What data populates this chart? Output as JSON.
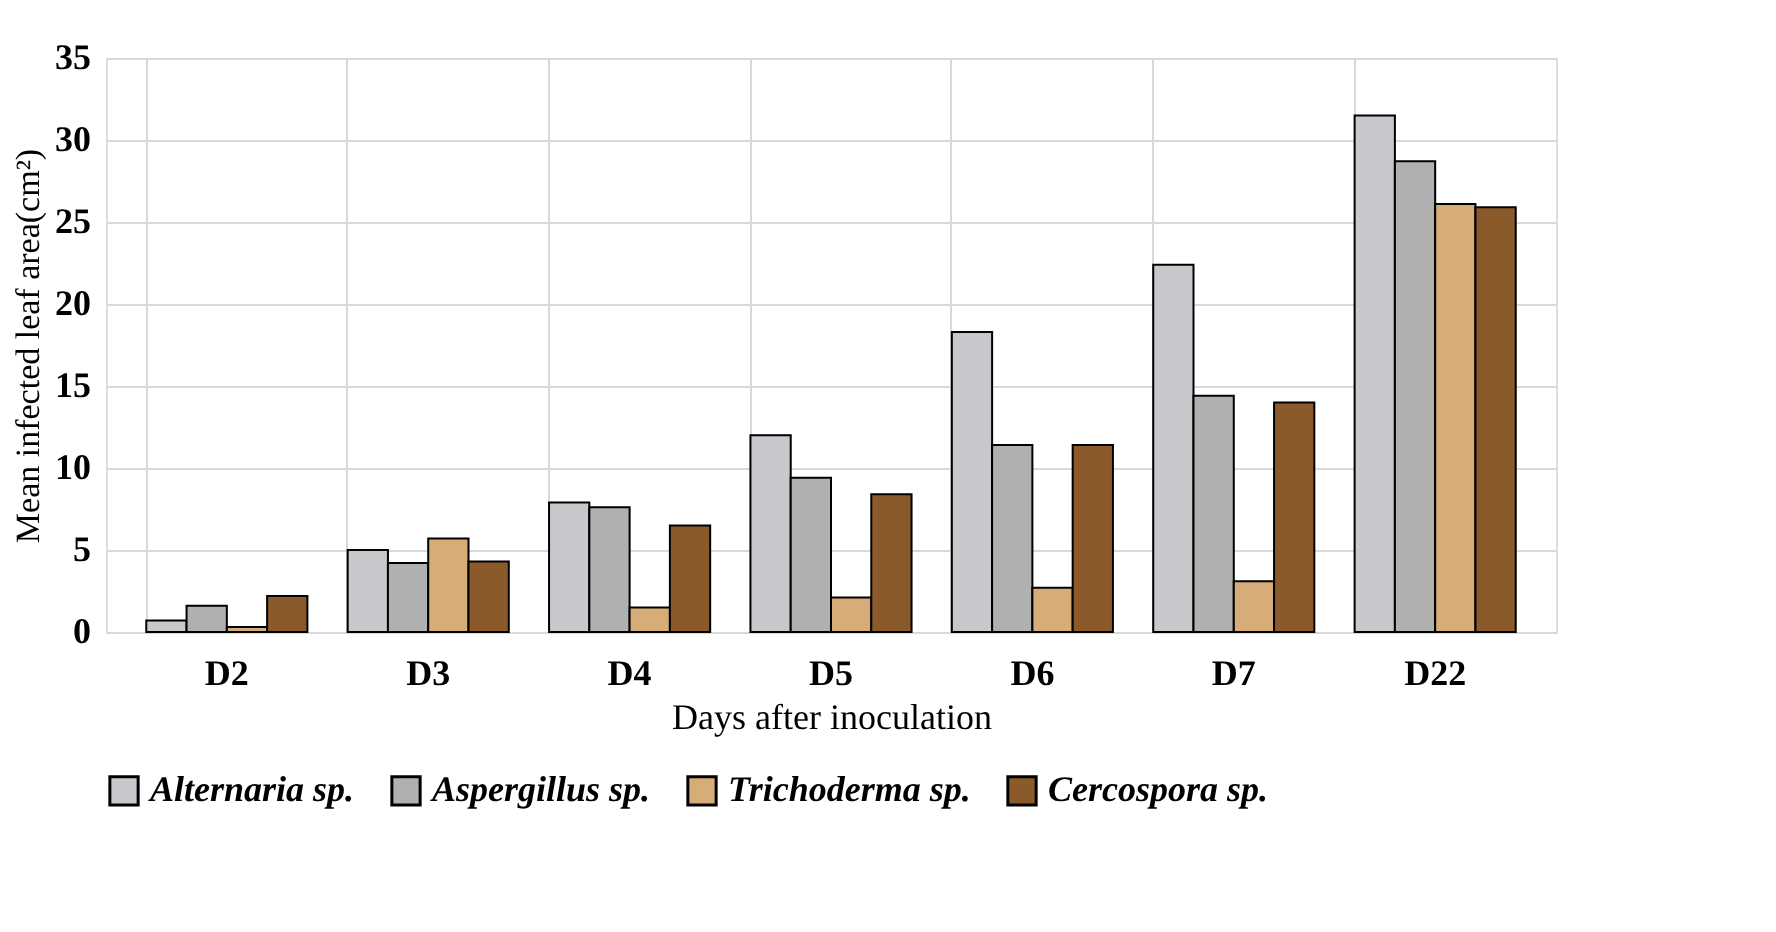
{
  "chart_data": {
    "type": "bar",
    "xlabel": "Days after inoculation",
    "ylabel": "Mean infected leaf area(cm²)",
    "categories": [
      "D2",
      "D3",
      "D4",
      "D5",
      "D6",
      "D7",
      "D22"
    ],
    "series": [
      {
        "name": "Alternaria sp.",
        "color": "#c8c8cc",
        "values": [
          0.7,
          5.0,
          7.9,
          12.0,
          18.3,
          22.4,
          31.5
        ]
      },
      {
        "name": "Aspergillus sp.",
        "color": "#b0b0b0",
        "values": [
          1.6,
          4.2,
          7.6,
          9.4,
          11.4,
          14.4,
          28.7
        ]
      },
      {
        "name": "Trichoderma sp.",
        "color": "#d6ad78",
        "values": [
          0.3,
          5.7,
          1.5,
          2.1,
          2.7,
          3.1,
          26.1
        ]
      },
      {
        "name": "Cercospora sp.",
        "color": "#8b5a2b",
        "values": [
          2.2,
          4.3,
          6.5,
          8.4,
          11.4,
          14.0,
          25.9
        ]
      }
    ],
    "ylim": [
      0,
      35
    ],
    "yticks": [
      0,
      5,
      10,
      15,
      20,
      25,
      30,
      35
    ],
    "grid": true,
    "legend": "bottom"
  }
}
